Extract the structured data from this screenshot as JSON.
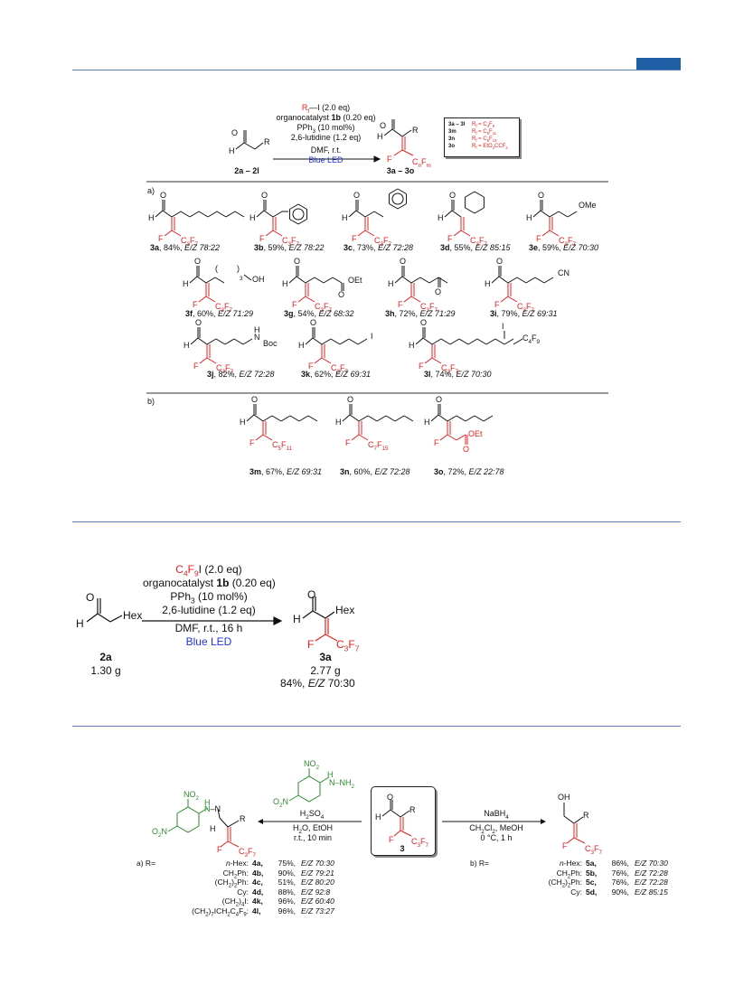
{
  "scheme1": {
    "conditions": {
      "reagent_rf": "R",
      "reagent_rf_sub": "f",
      "reagent_rest": "—I (2.0 eq)",
      "line2_pre": "organocatalyst ",
      "line2_bold": "1b",
      "line2_post": " (0.20 eq)",
      "line3": "PPh",
      "line3_sub": "3",
      "line3_post": " (10 mol%)",
      "line4": "2,6-lutidine (1.2 eq)",
      "line5": "DMF, r.t.",
      "line6": "Blue LED"
    },
    "start_label": "2a – 2l",
    "product_label": "3a – 3o",
    "product_group": "C",
    "product_group_n": "n",
    "product_group_f": "F",
    "product_group_m": "m",
    "legend": [
      {
        "id": "3a – 3l",
        "rf": "C4F9"
      },
      {
        "id": "3m",
        "rf": "C5F11"
      },
      {
        "id": "3n",
        "rf": "C6F13"
      },
      {
        "id": "3o",
        "rf": "EtO2CCF2"
      }
    ],
    "section_a": "a)",
    "section_b": "b)",
    "compounds": [
      {
        "id": "3a",
        "yield": ", 84%, ",
        "ez": "E/Z 78:22"
      },
      {
        "id": "3b",
        "yield": ", 59%, ",
        "ez": "E/Z 78:22"
      },
      {
        "id": "3c",
        "yield": ", 73%, ",
        "ez": "E/Z 72:28"
      },
      {
        "id": "3d",
        "yield": ", 55%, ",
        "ez": "E/Z 85:15"
      },
      {
        "id": "3e",
        "yield": ", 59%, ",
        "ez": "E/Z 70:30"
      },
      {
        "id": "3f",
        "yield": ", 60%, ",
        "ez": "E/Z 71:29"
      },
      {
        "id": "3g",
        "yield": ", 54%, ",
        "ez": "E/Z 68:32"
      },
      {
        "id": "3h",
        "yield": ", 72%, ",
        "ez": "E/Z 71:29"
      },
      {
        "id": "3i",
        "yield": ", 79%, ",
        "ez": "E/Z 69:31"
      },
      {
        "id": "3j",
        "yield": ", 82%, ",
        "ez": "E/Z 72:28"
      },
      {
        "id": "3k",
        "yield": ", 62%, ",
        "ez": "E/Z 69:31"
      },
      {
        "id": "3l",
        "yield": ", 74%, ",
        "ez": "E/Z 70:30"
      },
      {
        "id": "3m",
        "yield": ", 67%, ",
        "ez": "E/Z 69:31"
      },
      {
        "id": "3n",
        "yield": ", 60%, ",
        "ez": "E/Z 72:28"
      },
      {
        "id": "3o",
        "yield": ", 72%, ",
        "ez": "E/Z 22:78"
      }
    ],
    "substituents": {
      "OMe": "OMe",
      "OH": "OH",
      "OEt": "OEt",
      "CN": "CN",
      "Boc": "Boc",
      "I": "I",
      "C4F9": "C4F9",
      "H": "H",
      "O": "O",
      "N": "N",
      "F": "F",
      "three": "3"
    }
  },
  "scheme2": {
    "reagent": "C4F9I (2.0 eq)",
    "line2_pre": "organocatalyst ",
    "line2_bold": "1b",
    "line2_post": " (0.20 eq)",
    "line3": "PPh3 (10 mol%)",
    "line4": "2,6-lutidine (1.2 eq)",
    "line5": "DMF, r.t., 16 h",
    "line6": "Blue LED",
    "start_id": "2a",
    "start_mass": "1.30 g",
    "start_group": "Hex",
    "product_id": "3a",
    "product_mass": "2.77 g",
    "product_yield_pre": "84%, ",
    "product_ez": "E/Z",
    "product_yield_post": " 70:30",
    "product_group": "Hex"
  },
  "scheme3": {
    "left_conditions": {
      "l1": "H2SO4",
      "l2": "H2O, EtOH",
      "l3": "r.t., 10 min"
    },
    "right_conditions": {
      "l1": "NaBH4",
      "l2": "CH2Cl2, MeOH",
      "l3": "0 °C, 1 h"
    },
    "center_id": "3",
    "hydrazine_labels": {
      "no2": "NO2",
      "nh": "NH2"
    },
    "left_table_label": "a)  R=",
    "left_table": [
      {
        "r": "n-Hex:",
        "id": "4a",
        "y": "75%,",
        "ez": "E/Z 70:30"
      },
      {
        "r": "CH2Ph:",
        "id": "4b",
        "y": "90%,",
        "ez": "E/Z 79:21"
      },
      {
        "r": "(CH2)2Ph:",
        "id": "4c",
        "y": "51%,",
        "ez": "E/Z 80:20"
      },
      {
        "r": "Cy:",
        "id": "4d",
        "y": "88%,",
        "ez": "E/Z 92:8"
      },
      {
        "r": "(CH2)4I:",
        "id": "4k",
        "y": "96%,",
        "ez": "E/Z 60:40"
      },
      {
        "r": "(CH2)7ICH2C4F9:",
        "id": "4l",
        "y": "96%,",
        "ez": "E/Z 73:27"
      }
    ],
    "right_table_label": "b)  R=",
    "right_table": [
      {
        "r": "n-Hex:",
        "id": "5a",
        "y": "86%,",
        "ez": "E/Z 70:30"
      },
      {
        "r": "CH2Ph:",
        "id": "5b",
        "y": "76%,",
        "ez": "E/Z 72:28"
      },
      {
        "r": "(CH2)2Ph:",
        "id": "5c",
        "y": "76%,",
        "ez": "E/Z 72:28"
      },
      {
        "r": "Cy:",
        "id": "5d",
        "y": "90%,",
        "ez": "E/Z 85:15"
      }
    ]
  }
}
